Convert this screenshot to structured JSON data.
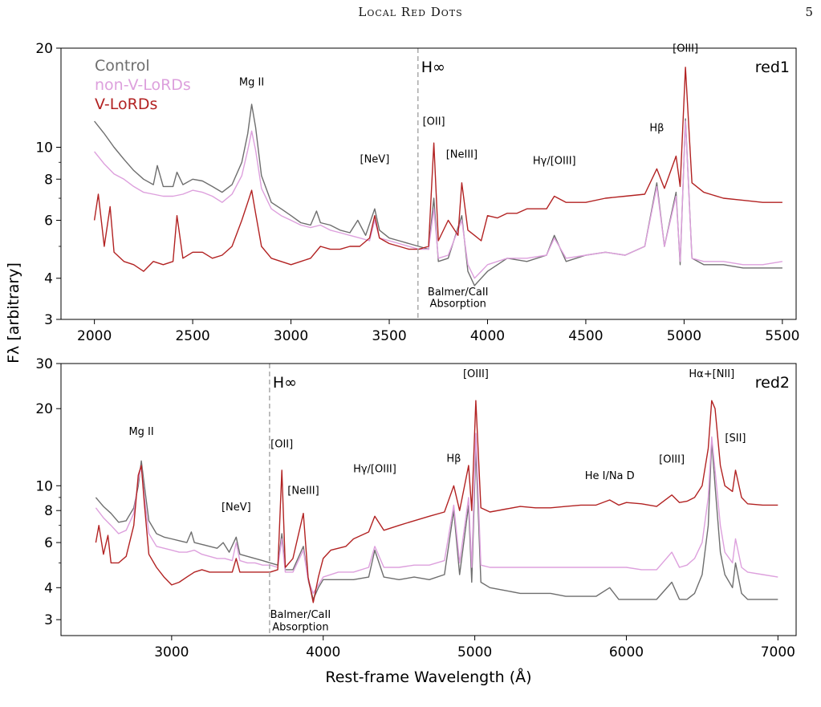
{
  "header": {
    "running_title": "Local Red Dots",
    "page_number": "5"
  },
  "figure": {
    "ylabel": "Fλ [arbitrary]",
    "xlabel": "Rest-frame Wavelength (Å)"
  },
  "colors": {
    "Control": "#6e6e6e",
    "non-V-LoRDs": "#dda0dd",
    "V-LoRDs": "#b22222",
    "hinf": "#aaaaaa"
  },
  "chart_data": [
    {
      "type": "line",
      "panel_label": "red1",
      "yscale": "log",
      "xlim": [
        1830,
        5570
      ],
      "ylim": [
        3,
        20
      ],
      "xticks": [
        2000,
        2500,
        3000,
        3500,
        4000,
        4500,
        5000,
        5500
      ],
      "yticks": [
        3,
        4,
        6,
        8,
        10,
        20
      ],
      "legend": {
        "position": "top-left",
        "entries": [
          "Control",
          "non-V-LoRDs",
          "V-LoRDs"
        ]
      },
      "vline": {
        "x": 3646,
        "label": "H∞"
      },
      "annotations": [
        {
          "text": "Mg II",
          "x": 2800,
          "y": 15.4
        },
        {
          "text": "[NeV]",
          "x": 3426,
          "y": 9.0
        },
        {
          "text": "[OII]",
          "x": 3727,
          "y": 11.7
        },
        {
          "text": "[NeIII]",
          "x": 3869,
          "y": 9.3
        },
        {
          "text": "Hγ/[OIII]",
          "x": 4340,
          "y": 8.9
        },
        {
          "text": "Hβ",
          "x": 4861,
          "y": 11.2
        },
        {
          "text": "[OIII]",
          "x": 5007,
          "y": 19.5
        },
        {
          "text": "Balmer/CaII",
          "x": 3850,
          "y": 3.55
        },
        {
          "text": "Absorption",
          "x": 3850,
          "y": 3.27
        }
      ],
      "series": [
        {
          "name": "Control",
          "x": [
            2000,
            2050,
            2100,
            2150,
            2200,
            2250,
            2300,
            2320,
            2350,
            2400,
            2420,
            2450,
            2500,
            2550,
            2600,
            2650,
            2700,
            2750,
            2780,
            2800,
            2820,
            2850,
            2900,
            2950,
            3000,
            3050,
            3100,
            3130,
            3150,
            3200,
            3250,
            3300,
            3340,
            3380,
            3426,
            3450,
            3500,
            3550,
            3600,
            3650,
            3700,
            3727,
            3750,
            3800,
            3869,
            3900,
            3934,
            3968,
            4000,
            4100,
            4200,
            4300,
            4340,
            4400,
            4500,
            4600,
            4700,
            4800,
            4861,
            4900,
            4959,
            4980,
            5007,
            5040,
            5100,
            5200,
            5300,
            5400,
            5500
          ],
          "y": [
            12.0,
            11.0,
            10.0,
            9.2,
            8.5,
            8.0,
            7.7,
            8.8,
            7.6,
            7.6,
            8.4,
            7.7,
            8.0,
            7.9,
            7.6,
            7.3,
            7.7,
            9.0,
            11.0,
            13.5,
            11.5,
            8.2,
            6.8,
            6.5,
            6.2,
            5.9,
            5.8,
            6.4,
            5.9,
            5.8,
            5.6,
            5.5,
            6.0,
            5.4,
            6.5,
            5.6,
            5.3,
            5.2,
            5.1,
            5.0,
            4.9,
            7.0,
            4.5,
            4.6,
            6.2,
            4.2,
            3.8,
            4.0,
            4.2,
            4.6,
            4.5,
            4.7,
            5.4,
            4.5,
            4.7,
            4.8,
            4.7,
            5.0,
            7.8,
            5.0,
            7.3,
            4.4,
            12.2,
            4.6,
            4.4,
            4.4,
            4.3,
            4.3,
            4.3
          ]
        },
        {
          "name": "non-V-LoRDs",
          "x": [
            2000,
            2050,
            2100,
            2150,
            2200,
            2250,
            2300,
            2350,
            2400,
            2450,
            2500,
            2550,
            2600,
            2650,
            2700,
            2750,
            2780,
            2800,
            2820,
            2850,
            2900,
            2950,
            3000,
            3050,
            3100,
            3150,
            3200,
            3250,
            3300,
            3350,
            3400,
            3426,
            3450,
            3500,
            3550,
            3600,
            3650,
            3700,
            3727,
            3750,
            3800,
            3869,
            3900,
            3934,
            3968,
            4000,
            4100,
            4200,
            4300,
            4340,
            4400,
            4500,
            4600,
            4700,
            4800,
            4861,
            4900,
            4959,
            4980,
            5007,
            5040,
            5100,
            5200,
            5300,
            5400,
            5500
          ],
          "y": [
            9.7,
            8.9,
            8.3,
            8.0,
            7.6,
            7.3,
            7.2,
            7.1,
            7.1,
            7.2,
            7.4,
            7.3,
            7.1,
            6.8,
            7.2,
            8.2,
            9.8,
            11.2,
            9.8,
            7.5,
            6.5,
            6.2,
            6.0,
            5.8,
            5.7,
            5.8,
            5.6,
            5.5,
            5.4,
            5.3,
            5.2,
            6.0,
            5.3,
            5.2,
            5.1,
            5.0,
            4.9,
            4.9,
            6.5,
            4.6,
            4.7,
            6.0,
            4.4,
            4.0,
            4.2,
            4.4,
            4.6,
            4.6,
            4.7,
            5.3,
            4.6,
            4.7,
            4.8,
            4.7,
            5.0,
            7.6,
            5.0,
            7.1,
            4.5,
            12.0,
            4.6,
            4.5,
            4.5,
            4.4,
            4.4,
            4.5
          ]
        },
        {
          "name": "V-LoRDs",
          "x": [
            2000,
            2020,
            2050,
            2080,
            2100,
            2150,
            2200,
            2250,
            2300,
            2350,
            2400,
            2420,
            2450,
            2500,
            2550,
            2600,
            2650,
            2700,
            2750,
            2780,
            2800,
            2820,
            2850,
            2900,
            2950,
            3000,
            3050,
            3100,
            3150,
            3200,
            3250,
            3300,
            3350,
            3400,
            3426,
            3450,
            3500,
            3550,
            3600,
            3650,
            3700,
            3727,
            3750,
            3800,
            3850,
            3869,
            3900,
            3934,
            3968,
            4000,
            4050,
            4100,
            4150,
            4200,
            4300,
            4340,
            4400,
            4500,
            4600,
            4700,
            4800,
            4861,
            4900,
            4959,
            4980,
            5007,
            5040,
            5100,
            5200,
            5300,
            5400,
            5500
          ],
          "y": [
            6.0,
            7.2,
            5.0,
            6.6,
            4.8,
            4.5,
            4.4,
            4.2,
            4.5,
            4.4,
            4.5,
            6.2,
            4.6,
            4.8,
            4.8,
            4.6,
            4.7,
            5.0,
            6.0,
            6.8,
            7.4,
            6.3,
            5.0,
            4.6,
            4.5,
            4.4,
            4.5,
            4.6,
            5.0,
            4.9,
            4.9,
            5.0,
            5.0,
            5.3,
            6.2,
            5.3,
            5.1,
            5.0,
            4.9,
            4.9,
            5.0,
            10.3,
            5.2,
            6.0,
            5.4,
            7.8,
            5.6,
            5.4,
            5.2,
            6.2,
            6.1,
            6.3,
            6.3,
            6.5,
            6.5,
            7.1,
            6.8,
            6.8,
            7.0,
            7.1,
            7.2,
            8.6,
            7.5,
            9.4,
            7.6,
            17.5,
            7.8,
            7.3,
            7.0,
            6.9,
            6.8,
            6.8
          ]
        }
      ]
    },
    {
      "type": "line",
      "panel_label": "red2",
      "yscale": "log",
      "xlim": [
        2270,
        7120
      ],
      "ylim": [
        2.6,
        30
      ],
      "xticks": [
        3000,
        4000,
        5000,
        6000,
        7000
      ],
      "yticks": [
        3,
        4,
        6,
        8,
        10,
        20,
        30
      ],
      "vline": {
        "x": 3646,
        "label": "H∞"
      },
      "annotations": [
        {
          "text": "Mg II",
          "x": 2800,
          "y": 15.8
        },
        {
          "text": "[NeV]",
          "x": 3426,
          "y": 8.0
        },
        {
          "text": "[OII]",
          "x": 3727,
          "y": 14.1
        },
        {
          "text": "[NeIII]",
          "x": 3869,
          "y": 9.3
        },
        {
          "text": "Hγ/[OIII]",
          "x": 4340,
          "y": 11.3
        },
        {
          "text": "Hβ",
          "x": 4861,
          "y": 12.4
        },
        {
          "text": "[OIII]",
          "x": 5007,
          "y": 26.5
        },
        {
          "text": "He I/Na D",
          "x": 5890,
          "y": 10.6
        },
        {
          "text": "[OIII]",
          "x": 6300,
          "y": 12.3
        },
        {
          "text": "Hα+[NII]",
          "x": 6563,
          "y": 26.5
        },
        {
          "text": "[SII]",
          "x": 6720,
          "y": 14.9
        },
        {
          "text": "Balmer/CaII",
          "x": 3850,
          "y": 3.05
        },
        {
          "text": "Absorption",
          "x": 3850,
          "y": 2.72
        }
      ],
      "series": [
        {
          "name": "Control",
          "x": [
            2500,
            2550,
            2600,
            2650,
            2700,
            2750,
            2780,
            2800,
            2820,
            2850,
            2900,
            2950,
            3000,
            3050,
            3100,
            3130,
            3150,
            3200,
            3250,
            3300,
            3340,
            3380,
            3426,
            3450,
            3500,
            3550,
            3600,
            3650,
            3700,
            3727,
            3750,
            3800,
            3869,
            3900,
            3934,
            3968,
            4000,
            4100,
            4200,
            4300,
            4340,
            4400,
            4500,
            4600,
            4700,
            4800,
            4861,
            4900,
            4959,
            4980,
            5007,
            5040,
            5100,
            5200,
            5300,
            5400,
            5500,
            5600,
            5700,
            5800,
            5890,
            5950,
            6000,
            6100,
            6200,
            6300,
            6350,
            6400,
            6450,
            6500,
            6540,
            6563,
            6585,
            6620,
            6650,
            6700,
            6720,
            6760,
            6800,
            6900,
            7000
          ],
          "y": [
            9.0,
            8.3,
            7.8,
            7.2,
            7.3,
            8.2,
            10.0,
            12.5,
            10.0,
            7.3,
            6.5,
            6.3,
            6.2,
            6.1,
            6.0,
            6.6,
            6.0,
            5.9,
            5.8,
            5.7,
            6.0,
            5.5,
            6.3,
            5.4,
            5.3,
            5.2,
            5.1,
            5.0,
            4.9,
            6.5,
            4.7,
            4.7,
            5.8,
            4.3,
            3.6,
            4.0,
            4.3,
            4.3,
            4.3,
            4.4,
            5.6,
            4.4,
            4.3,
            4.4,
            4.3,
            4.5,
            8.0,
            4.5,
            8.4,
            4.2,
            14.0,
            4.2,
            4.0,
            3.9,
            3.8,
            3.8,
            3.8,
            3.7,
            3.7,
            3.7,
            4.0,
            3.6,
            3.6,
            3.6,
            3.6,
            4.2,
            3.6,
            3.6,
            3.8,
            4.5,
            7.0,
            15.0,
            10.0,
            5.5,
            4.5,
            4.0,
            5.0,
            3.8,
            3.6,
            3.6,
            3.6
          ]
        },
        {
          "name": "non-V-LoRDs",
          "x": [
            2500,
            2550,
            2600,
            2650,
            2700,
            2750,
            2780,
            2800,
            2820,
            2850,
            2900,
            2950,
            3000,
            3050,
            3100,
            3150,
            3200,
            3250,
            3300,
            3350,
            3400,
            3426,
            3450,
            3500,
            3550,
            3600,
            3650,
            3700,
            3727,
            3750,
            3800,
            3869,
            3900,
            3934,
            3968,
            4000,
            4100,
            4200,
            4300,
            4340,
            4400,
            4500,
            4600,
            4700,
            4800,
            4861,
            4900,
            4959,
            4980,
            5007,
            5040,
            5100,
            5200,
            5300,
            5400,
            5500,
            5600,
            5700,
            5800,
            5900,
            6000,
            6100,
            6200,
            6300,
            6350,
            6400,
            6450,
            6500,
            6540,
            6563,
            6585,
            6620,
            6650,
            6700,
            6720,
            6760,
            6800,
            6900,
            7000
          ],
          "y": [
            8.2,
            7.5,
            7.0,
            6.5,
            6.7,
            7.8,
            10.5,
            12.0,
            9.0,
            6.5,
            5.8,
            5.7,
            5.6,
            5.5,
            5.5,
            5.6,
            5.4,
            5.3,
            5.2,
            5.2,
            5.1,
            6.0,
            5.1,
            5.0,
            5.0,
            4.9,
            4.9,
            4.8,
            6.2,
            4.6,
            4.6,
            5.6,
            4.3,
            3.8,
            4.1,
            4.4,
            4.6,
            4.6,
            4.8,
            5.8,
            4.8,
            4.8,
            4.9,
            4.9,
            5.1,
            8.4,
            5.0,
            9.0,
            4.8,
            16.0,
            4.9,
            4.8,
            4.8,
            4.8,
            4.8,
            4.8,
            4.8,
            4.8,
            4.8,
            4.8,
            4.8,
            4.7,
            4.7,
            5.5,
            4.8,
            4.9,
            5.2,
            6.0,
            9.0,
            15.5,
            11.5,
            7.0,
            5.5,
            5.0,
            6.2,
            4.8,
            4.6,
            4.5,
            4.4
          ]
        },
        {
          "name": "V-LoRDs",
          "x": [
            2500,
            2520,
            2550,
            2580,
            2600,
            2650,
            2700,
            2750,
            2780,
            2800,
            2820,
            2850,
            2900,
            2950,
            3000,
            3050,
            3100,
            3150,
            3200,
            3250,
            3300,
            3350,
            3400,
            3426,
            3450,
            3500,
            3550,
            3600,
            3650,
            3700,
            3727,
            3750,
            3800,
            3869,
            3900,
            3934,
            3968,
            4000,
            4050,
            4100,
            4150,
            4200,
            4300,
            4340,
            4400,
            4500,
            4600,
            4700,
            4800,
            4861,
            4900,
            4959,
            4980,
            5007,
            5040,
            5100,
            5200,
            5300,
            5400,
            5500,
            5600,
            5700,
            5800,
            5890,
            5950,
            6000,
            6100,
            6200,
            6300,
            6350,
            6400,
            6450,
            6500,
            6540,
            6563,
            6585,
            6620,
            6650,
            6700,
            6720,
            6760,
            6800,
            6900,
            7000
          ],
          "y": [
            6.0,
            7.0,
            5.4,
            6.4,
            5.0,
            5.0,
            5.3,
            7.0,
            11.0,
            12.0,
            8.5,
            5.4,
            4.8,
            4.4,
            4.1,
            4.2,
            4.4,
            4.6,
            4.7,
            4.6,
            4.6,
            4.6,
            4.6,
            5.2,
            4.6,
            4.6,
            4.6,
            4.6,
            4.6,
            4.7,
            11.5,
            4.8,
            5.2,
            7.8,
            4.4,
            3.5,
            4.4,
            5.2,
            5.6,
            5.7,
            5.8,
            6.2,
            6.6,
            7.6,
            6.7,
            7.0,
            7.3,
            7.6,
            7.9,
            10.0,
            8.0,
            12.0,
            8.0,
            21.5,
            8.2,
            7.9,
            8.1,
            8.3,
            8.2,
            8.2,
            8.3,
            8.4,
            8.4,
            8.8,
            8.4,
            8.6,
            8.5,
            8.3,
            9.2,
            8.6,
            8.7,
            9.0,
            10.0,
            14.0,
            21.5,
            20.0,
            12.0,
            10.0,
            9.5,
            11.5,
            9.0,
            8.5,
            8.4,
            8.4
          ]
        }
      ]
    }
  ]
}
